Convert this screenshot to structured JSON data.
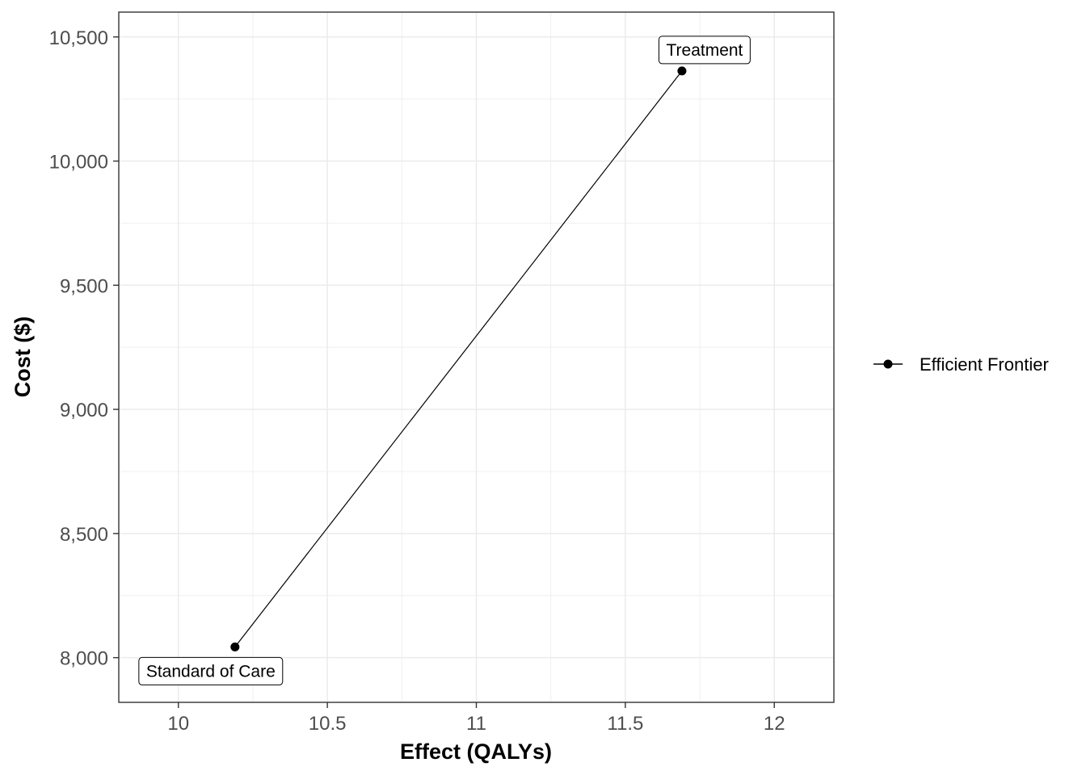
{
  "chart_data": {
    "type": "line",
    "title": "",
    "xlabel": "Effect (QALYs)",
    "ylabel": "Cost ($)",
    "xlim": [
      9.8,
      12.2
    ],
    "ylim": [
      7820,
      10600
    ],
    "x_ticks": [
      10,
      10.5,
      11,
      11.5,
      12
    ],
    "x_tick_labels": [
      "10",
      "10.5",
      "11",
      "11.5",
      "12"
    ],
    "y_ticks": [
      8000,
      8500,
      9000,
      9500,
      10000,
      10500
    ],
    "y_tick_labels": [
      "8,000",
      "8,500",
      "9,000",
      "9,500",
      "10,000",
      "10,500"
    ],
    "grid": true,
    "legend_position": "right",
    "series": [
      {
        "name": "Efficient Frontier",
        "color": "#000000",
        "points": [
          {
            "label": "Standard of Care",
            "x": 10.19,
            "y": 8043
          },
          {
            "label": "Treatment",
            "x": 11.69,
            "y": 10363
          }
        ]
      }
    ]
  }
}
